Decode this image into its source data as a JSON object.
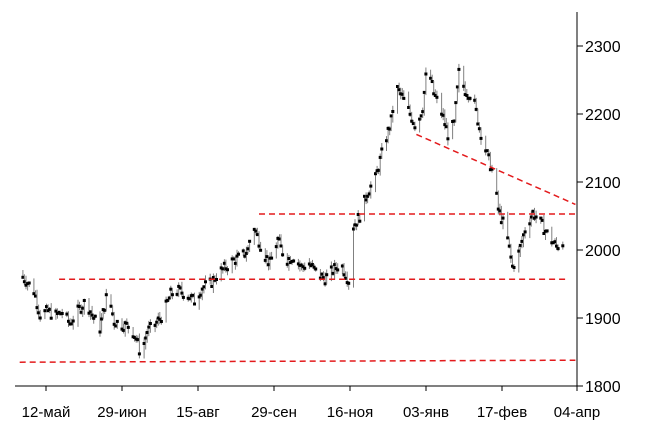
{
  "chart_data": {
    "type": "line",
    "style": "ohlc",
    "title": "",
    "xlabel": "",
    "ylabel": "",
    "x_ticks": [
      "12-май",
      "29-июн",
      "15-авг",
      "29-сен",
      "16-ноя",
      "03-янв",
      "17-фев",
      "04-апр"
    ],
    "y_ticks": [
      "1800",
      "1900",
      "2000",
      "2100",
      "2200",
      "2300"
    ],
    "ylim": [
      1800,
      2350
    ],
    "y_axis_side": "right",
    "grid": false,
    "legend": "none",
    "series_color": "#000000",
    "wick_color": "#808080",
    "trendline_color": "#e31a1c",
    "close_anchors": [
      {
        "x": "2019-04-20",
        "y": 1965
      },
      {
        "x": "2019-04-24",
        "y": 1955
      },
      {
        "x": "2019-04-29",
        "y": 1940
      },
      {
        "x": "2019-05-03",
        "y": 1905
      },
      {
        "x": "2019-05-08",
        "y": 1910
      },
      {
        "x": "2019-05-12",
        "y": 1903
      },
      {
        "x": "2019-05-17",
        "y": 1908
      },
      {
        "x": "2019-05-22",
        "y": 1892
      },
      {
        "x": "2019-05-27",
        "y": 1910
      },
      {
        "x": "2019-06-01",
        "y": 1925
      },
      {
        "x": "2019-06-06",
        "y": 1900
      },
      {
        "x": "2019-06-10",
        "y": 1885
      },
      {
        "x": "2019-06-15",
        "y": 1940
      },
      {
        "x": "2019-06-19",
        "y": 1895
      },
      {
        "x": "2019-06-24",
        "y": 1890
      },
      {
        "x": "2019-06-29",
        "y": 1888
      },
      {
        "x": "2019-07-03",
        "y": 1870
      },
      {
        "x": "2019-07-06",
        "y": 1845
      },
      {
        "x": "2019-07-10",
        "y": 1880
      },
      {
        "x": "2019-07-15",
        "y": 1890
      },
      {
        "x": "2019-07-20",
        "y": 1905
      },
      {
        "x": "2019-07-25",
        "y": 1935
      },
      {
        "x": "2019-07-30",
        "y": 1940
      },
      {
        "x": "2019-08-04",
        "y": 1935
      },
      {
        "x": "2019-08-09",
        "y": 1925
      },
      {
        "x": "2019-08-14",
        "y": 1945
      },
      {
        "x": "2019-08-19",
        "y": 1950
      },
      {
        "x": "2019-08-24",
        "y": 1965
      },
      {
        "x": "2019-08-29",
        "y": 1975
      },
      {
        "x": "2019-09-03",
        "y": 1985
      },
      {
        "x": "2019-09-08",
        "y": 1990
      },
      {
        "x": "2019-09-12",
        "y": 2000
      },
      {
        "x": "2019-09-15",
        "y": 2040
      },
      {
        "x": "2019-09-18",
        "y": 2020
      },
      {
        "x": "2019-09-22",
        "y": 1995
      },
      {
        "x": "2019-09-26",
        "y": 1980
      },
      {
        "x": "2019-10-01",
        "y": 2015
      },
      {
        "x": "2019-10-06",
        "y": 1985
      },
      {
        "x": "2019-10-11",
        "y": 1990
      },
      {
        "x": "2019-10-16",
        "y": 1975
      },
      {
        "x": "2019-10-21",
        "y": 1980
      },
      {
        "x": "2019-10-26",
        "y": 1965
      },
      {
        "x": "2019-10-31",
        "y": 1958
      },
      {
        "x": "2019-11-05",
        "y": 1970
      },
      {
        "x": "2019-11-10",
        "y": 1980
      },
      {
        "x": "2019-11-15",
        "y": 1955
      },
      {
        "x": "2019-11-18",
        "y": 2035
      },
      {
        "x": "2019-11-22",
        "y": 2050
      },
      {
        "x": "2019-11-27",
        "y": 2085
      },
      {
        "x": "2019-12-02",
        "y": 2105
      },
      {
        "x": "2019-12-07",
        "y": 2150
      },
      {
        "x": "2019-12-12",
        "y": 2190
      },
      {
        "x": "2019-12-15",
        "y": 2240
      },
      {
        "x": "2019-12-19",
        "y": 2225
      },
      {
        "x": "2019-12-24",
        "y": 2200
      },
      {
        "x": "2019-12-28",
        "y": 2180
      },
      {
        "x": "2020-01-01",
        "y": 2210
      },
      {
        "x": "2020-01-04",
        "y": 2275
      },
      {
        "x": "2020-01-08",
        "y": 2230
      },
      {
        "x": "2020-01-12",
        "y": 2210
      },
      {
        "x": "2020-01-17",
        "y": 2170
      },
      {
        "x": "2020-01-21",
        "y": 2185
      },
      {
        "x": "2020-01-24",
        "y": 2260
      },
      {
        "x": "2020-01-28",
        "y": 2235
      },
      {
        "x": "2020-02-02",
        "y": 2225
      },
      {
        "x": "2020-02-06",
        "y": 2180
      },
      {
        "x": "2020-02-11",
        "y": 2140
      },
      {
        "x": "2020-02-15",
        "y": 2110
      },
      {
        "x": "2020-02-18",
        "y": 2060
      },
      {
        "x": "2020-02-21",
        "y": 2040
      },
      {
        "x": "2020-02-24",
        "y": 2015
      },
      {
        "x": "2020-02-27",
        "y": 1975
      },
      {
        "x": "2020-03-02",
        "y": 1995
      },
      {
        "x": "2020-03-06",
        "y": 2030
      },
      {
        "x": "2020-03-11",
        "y": 2055
      },
      {
        "x": "2020-03-16",
        "y": 2040
      },
      {
        "x": "2020-03-21",
        "y": 2020
      },
      {
        "x": "2020-03-26",
        "y": 2005
      },
      {
        "x": "2020-03-30",
        "y": 2010
      }
    ],
    "trendlines": [
      {
        "name": "support-1835",
        "x1": "2019-04-20",
        "y1": 1835,
        "x2": "2020-04-07",
        "y2": 1838
      },
      {
        "name": "support-1957",
        "x1": "2019-05-15",
        "y1": 1957,
        "x2": "2020-04-02",
        "y2": 1957
      },
      {
        "name": "resistance-2053",
        "x1": "2019-09-19",
        "y1": 2053,
        "x2": "2020-04-07",
        "y2": 2053
      },
      {
        "name": "downtrend",
        "x1": "2019-12-28",
        "y1": 2170,
        "x2": "2020-04-07",
        "y2": 2067
      }
    ]
  }
}
